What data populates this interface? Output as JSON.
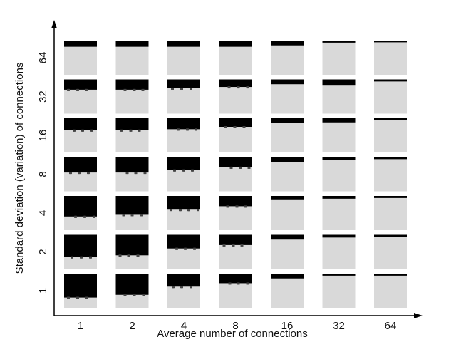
{
  "chart_data": {
    "type": "heatmap",
    "title": "",
    "xlabel": "Average number of connections",
    "ylabel": "Standard deviation (variation) of connections",
    "x_categories": [
      "1",
      "2",
      "4",
      "8",
      "16",
      "32",
      "64"
    ],
    "y_categories": [
      "1",
      "2",
      "4",
      "8",
      "16",
      "32",
      "64"
    ],
    "cell_style": "grayscale-tile",
    "colors": {
      "background": "#d9d9d9",
      "fill": "#000000",
      "axis": "#000000"
    },
    "black_fraction": [
      [
        0.7,
        0.62,
        0.38,
        0.28,
        0.14,
        0.06,
        0.06
      ],
      [
        0.65,
        0.6,
        0.4,
        0.3,
        0.14,
        0.08,
        0.06
      ],
      [
        0.6,
        0.55,
        0.4,
        0.3,
        0.12,
        0.08,
        0.06
      ],
      [
        0.45,
        0.45,
        0.38,
        0.3,
        0.14,
        0.08,
        0.06
      ],
      [
        0.35,
        0.35,
        0.32,
        0.25,
        0.14,
        0.12,
        0.06
      ],
      [
        0.3,
        0.3,
        0.26,
        0.22,
        0.14,
        0.16,
        0.06
      ],
      [
        0.18,
        0.18,
        0.18,
        0.18,
        0.14,
        0.06,
        0.05
      ]
    ]
  }
}
